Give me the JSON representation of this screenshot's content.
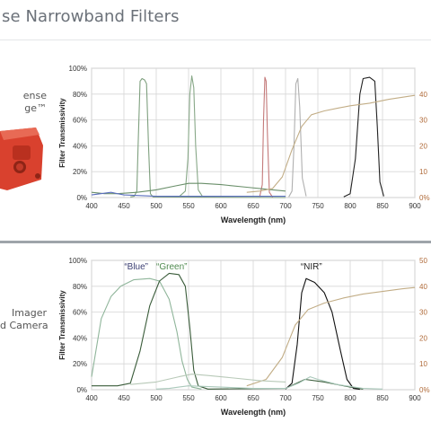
{
  "page": {
    "title": "se Narrowband Filters"
  },
  "left": {
    "panel1_line1": "ense",
    "panel1_line2": "ge™",
    "panel2_line1": "Imager",
    "panel2_line2": "d Camera"
  },
  "colors": {
    "page_bg": "#ffffff",
    "divider": "#9ea4aa",
    "right_axis_color": "#b06b3a",
    "device_red": "#d9412e"
  },
  "chart_data": [
    {
      "type": "line",
      "xlabel": "Wavelength (nm)",
      "ylabel": "Filter Transmissivity",
      "x_ticks": [
        "400",
        "450",
        "500",
        "550",
        "600",
        "650",
        "700",
        "750",
        "800",
        "850",
        "900"
      ],
      "y_ticks": [
        "0%",
        "20%",
        "40%",
        "60%",
        "80%",
        "100%"
      ],
      "right_ticks": [
        "0%",
        "10",
        "20",
        "30",
        "40"
      ],
      "xlim": [
        400,
        900
      ],
      "ylim": [
        0,
        100
      ],
      "grid": true,
      "series": [
        {
          "color": "#7fa07f",
          "points": [
            [
              460,
              0.5
            ],
            [
              466,
              1
            ],
            [
              470,
              5
            ],
            [
              472,
              40
            ],
            [
              475,
              90
            ],
            [
              478,
              92
            ],
            [
              482,
              91
            ],
            [
              485,
              88
            ],
            [
              488,
              40
            ],
            [
              491,
              3
            ],
            [
              495,
              0.5
            ],
            [
              700,
              0
            ]
          ]
        },
        {
          "color": "#88a888",
          "points": [
            [
              535,
              0.5
            ],
            [
              545,
              5
            ],
            [
              549,
              30
            ],
            [
              552,
              80
            ],
            [
              555,
              94
            ],
            [
              558,
              85
            ],
            [
              561,
              40
            ],
            [
              565,
              6
            ],
            [
              572,
              0.5
            ]
          ]
        },
        {
          "color": "#c47a7a",
          "points": [
            [
              660,
              0.5
            ],
            [
              664,
              10
            ],
            [
              666,
              60
            ],
            [
              668,
              93
            ],
            [
              670,
              90
            ],
            [
              672,
              50
            ],
            [
              675,
              4
            ],
            [
              680,
              0.3
            ]
          ]
        },
        {
          "color": "#b0b0b0",
          "points": [
            [
              705,
              0.5
            ],
            [
              710,
              5
            ],
            [
              713,
              40
            ],
            [
              716,
              88
            ],
            [
              719,
              92
            ],
            [
              722,
              70
            ],
            [
              726,
              15
            ],
            [
              732,
              1
            ]
          ]
        },
        {
          "color": "#222222",
          "points": [
            [
              790,
              0.5
            ],
            [
              800,
              3
            ],
            [
              808,
              30
            ],
            [
              815,
              80
            ],
            [
              820,
              92
            ],
            [
              830,
              93
            ],
            [
              838,
              90
            ],
            [
              842,
              55
            ],
            [
              846,
              12
            ],
            [
              852,
              1
            ]
          ]
        },
        {
          "color": "#6a8f6a",
          "points": [
            [
              400,
              4
            ],
            [
              420,
              3
            ],
            [
              440,
              3
            ],
            [
              470,
              4
            ],
            [
              500,
              6
            ],
            [
              530,
              9
            ],
            [
              550,
              11
            ],
            [
              570,
              11
            ],
            [
              600,
              10
            ],
            [
              640,
              8
            ],
            [
              680,
              6
            ],
            [
              700,
              5
            ]
          ]
        },
        {
          "color": "#5b6fbf",
          "points": [
            [
              400,
              2
            ],
            [
              430,
              4
            ],
            [
              450,
              2
            ],
            [
              500,
              1
            ],
            [
              600,
              1
            ],
            [
              700,
              1
            ]
          ]
        },
        {
          "color": "#c2ad86",
          "points": [
            [
              640,
              4
            ],
            [
              660,
              5
            ],
            [
              680,
              7
            ],
            [
              695,
              16
            ],
            [
              710,
              37
            ],
            [
              725,
              55
            ],
            [
              740,
              64
            ],
            [
              760,
              67
            ],
            [
              780,
              69
            ],
            [
              800,
              71
            ],
            [
              830,
              73
            ],
            [
              860,
              76
            ],
            [
              900,
              79
            ]
          ]
        }
      ]
    },
    {
      "type": "line",
      "xlabel": "Wavelength (nm)",
      "ylabel": "Filter Transmissivity",
      "x_ticks": [
        "400",
        "450",
        "500",
        "550",
        "600",
        "650",
        "700",
        "750",
        "800",
        "850",
        "900"
      ],
      "y_ticks": [
        "0%",
        "20%",
        "40%",
        "60%",
        "80%",
        "100%"
      ],
      "right_ticks": [
        "0%",
        "10",
        "20",
        "30",
        "40",
        "50"
      ],
      "xlim": [
        400,
        900
      ],
      "ylim": [
        0,
        100
      ],
      "grid": true,
      "annotations": [
        {
          "text": "“Blue”",
          "x": 469,
          "color": "#3c3f73"
        },
        {
          "text": "“Green”",
          "x": 524,
          "color": "#4f8a4f"
        },
        {
          "text": "“NIR”",
          "x": 740,
          "color": "#222222"
        }
      ],
      "series": [
        {
          "color": "#8fb59a",
          "points": [
            [
              400,
              10
            ],
            [
              405,
              25
            ],
            [
              415,
              55
            ],
            [
              430,
              72
            ],
            [
              445,
              80
            ],
            [
              465,
              85
            ],
            [
              490,
              86
            ],
            [
              505,
              84
            ],
            [
              520,
              70
            ],
            [
              532,
              45
            ],
            [
              540,
              22
            ],
            [
              548,
              8
            ],
            [
              555,
              2
            ],
            [
              570,
              0.5
            ]
          ]
        },
        {
          "color": "#3a5c3a",
          "points": [
            [
              400,
              3
            ],
            [
              440,
              3
            ],
            [
              460,
              5
            ],
            [
              475,
              30
            ],
            [
              490,
              65
            ],
            [
              505,
              84
            ],
            [
              520,
              90
            ],
            [
              535,
              89
            ],
            [
              545,
              80
            ],
            [
              552,
              48
            ],
            [
              558,
              15
            ],
            [
              565,
              3
            ],
            [
              580,
              0.5
            ],
            [
              700,
              1
            ],
            [
              730,
              8
            ],
            [
              760,
              6
            ],
            [
              800,
              2
            ],
            [
              820,
              0.5
            ]
          ]
        },
        {
          "color": "#111111",
          "points": [
            [
              700,
              0.5
            ],
            [
              710,
              5
            ],
            [
              718,
              35
            ],
            [
              725,
              75
            ],
            [
              732,
              86
            ],
            [
              745,
              83
            ],
            [
              760,
              75
            ],
            [
              772,
              60
            ],
            [
              785,
              30
            ],
            [
              795,
              8
            ],
            [
              805,
              1
            ],
            [
              815,
              0.3
            ]
          ]
        },
        {
          "color": "#aac9bb",
          "points": [
            [
              500,
              0.5
            ],
            [
              520,
              1
            ],
            [
              535,
              2
            ],
            [
              550,
              3
            ],
            [
              600,
              2
            ],
            [
              650,
              1
            ],
            [
              700,
              1
            ],
            [
              720,
              5
            ],
            [
              738,
              10
            ],
            [
              750,
              8
            ],
            [
              780,
              4
            ],
            [
              820,
              1
            ],
            [
              850,
              0.5
            ]
          ]
        },
        {
          "color": "#c2ad86",
          "points": [
            [
              640,
              3
            ],
            [
              670,
              8
            ],
            [
              695,
              25
            ],
            [
              715,
              50
            ],
            [
              735,
              62
            ],
            [
              760,
              67
            ],
            [
              790,
              71
            ],
            [
              820,
              74
            ],
            [
              850,
              76
            ],
            [
              880,
              78
            ],
            [
              900,
              79
            ]
          ]
        },
        {
          "color": "#b8c9b8",
          "points": [
            [
              460,
              4
            ],
            [
              500,
              6
            ],
            [
              535,
              10
            ],
            [
              555,
              12
            ],
            [
              580,
              11
            ],
            [
              620,
              9
            ],
            [
              660,
              7
            ],
            [
              700,
              6
            ]
          ]
        }
      ]
    }
  ]
}
